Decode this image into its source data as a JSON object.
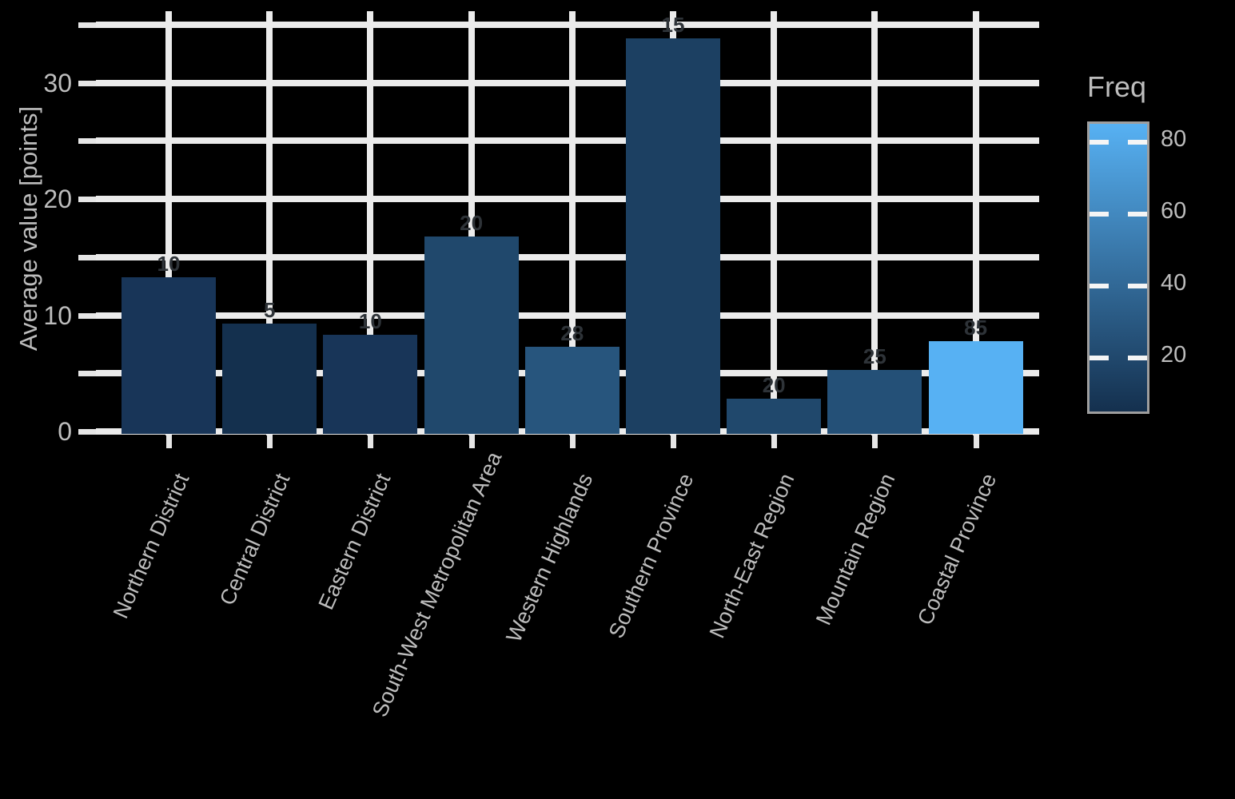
{
  "chart_data": {
    "type": "bar",
    "title": "",
    "categories": [
      "Northern District",
      "Central District",
      "Eastern District",
      "South-West Metropolitan Area",
      "Western Highlands",
      "Southern Province",
      "North-East Region",
      "Mountain Region",
      "Coastal Province"
    ],
    "series": [
      {
        "name": "value",
        "values": [
          13.5,
          9.5,
          8.5,
          17,
          7.5,
          34,
          3,
          5.5,
          8
        ]
      }
    ],
    "bar_value_labels": [
      "10",
      "5",
      "10",
      "20",
      "28",
      "15",
      "20",
      "25",
      "85"
    ],
    "bar_freq": [
      10,
      5,
      10,
      20,
      28,
      15,
      20,
      25,
      85
    ],
    "bar_colors": [
      "#183558",
      "#14304e",
      "#183558",
      "#20486c",
      "#27557d",
      "#1c4062",
      "#20486c",
      "#245077",
      "#57b1f3"
    ],
    "xlabel": "",
    "ylabel": "Average value [points]",
    "ylim": [
      0,
      36.5
    ],
    "y_major_tick_labels": [
      0,
      10,
      20,
      30
    ],
    "grid_step": 5,
    "grid": true,
    "legend": {
      "title": "Freq",
      "position": "right",
      "tick_values": [
        80,
        60,
        40,
        20
      ],
      "range": [
        5,
        85
      ],
      "color_low": "#14304e",
      "color_high": "#57b1f3"
    }
  },
  "colors": {
    "background": "#000000",
    "gridline": "#ebebeb",
    "axis_text": "#bdbdbd",
    "bar_value_label": "#2e3338",
    "legend_border": "#9e9e9e"
  }
}
